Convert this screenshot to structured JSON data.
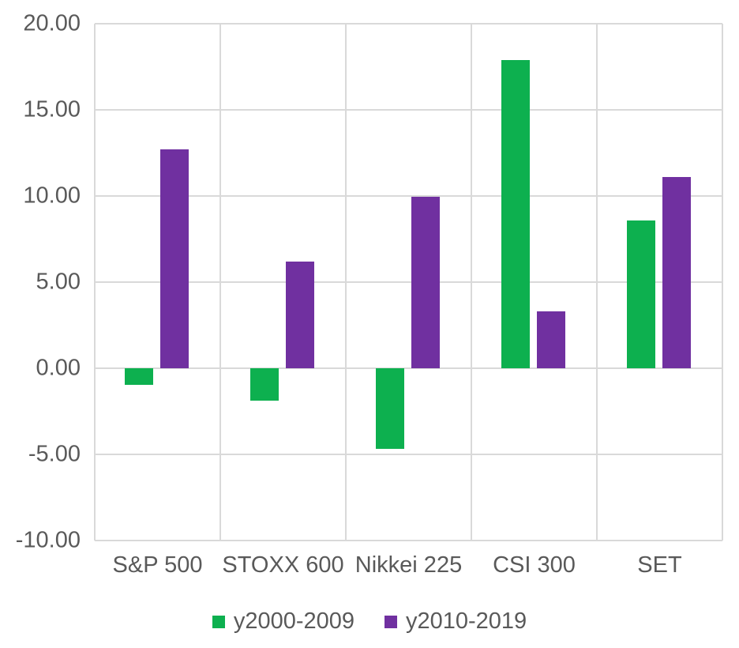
{
  "chart_data": {
    "type": "bar",
    "title": "",
    "xlabel": "",
    "ylabel": "",
    "categories": [
      "S&P 500",
      "STOXX 600",
      "Nikkei 225",
      "CSI 300",
      "SET"
    ],
    "series": [
      {
        "name": "y2000-2009",
        "color": "#0db04f",
        "values": [
          -0.95,
          -1.9,
          -4.7,
          17.9,
          8.6
        ]
      },
      {
        "name": "y2010-2019",
        "color": "#7030a0",
        "values": [
          12.7,
          6.2,
          9.95,
          3.3,
          11.1
        ]
      }
    ],
    "ylim": [
      -10,
      20
    ],
    "ytick_step": 5,
    "ytick_labels": [
      "20.00",
      "15.00",
      "10.00",
      "5.00",
      "0.00",
      "-5.00",
      "-10.00"
    ],
    "grid": true,
    "legend_position": "bottom",
    "colors": {
      "text": "#595959",
      "gridline": "#d9d9d9",
      "background": "#ffffff"
    }
  }
}
